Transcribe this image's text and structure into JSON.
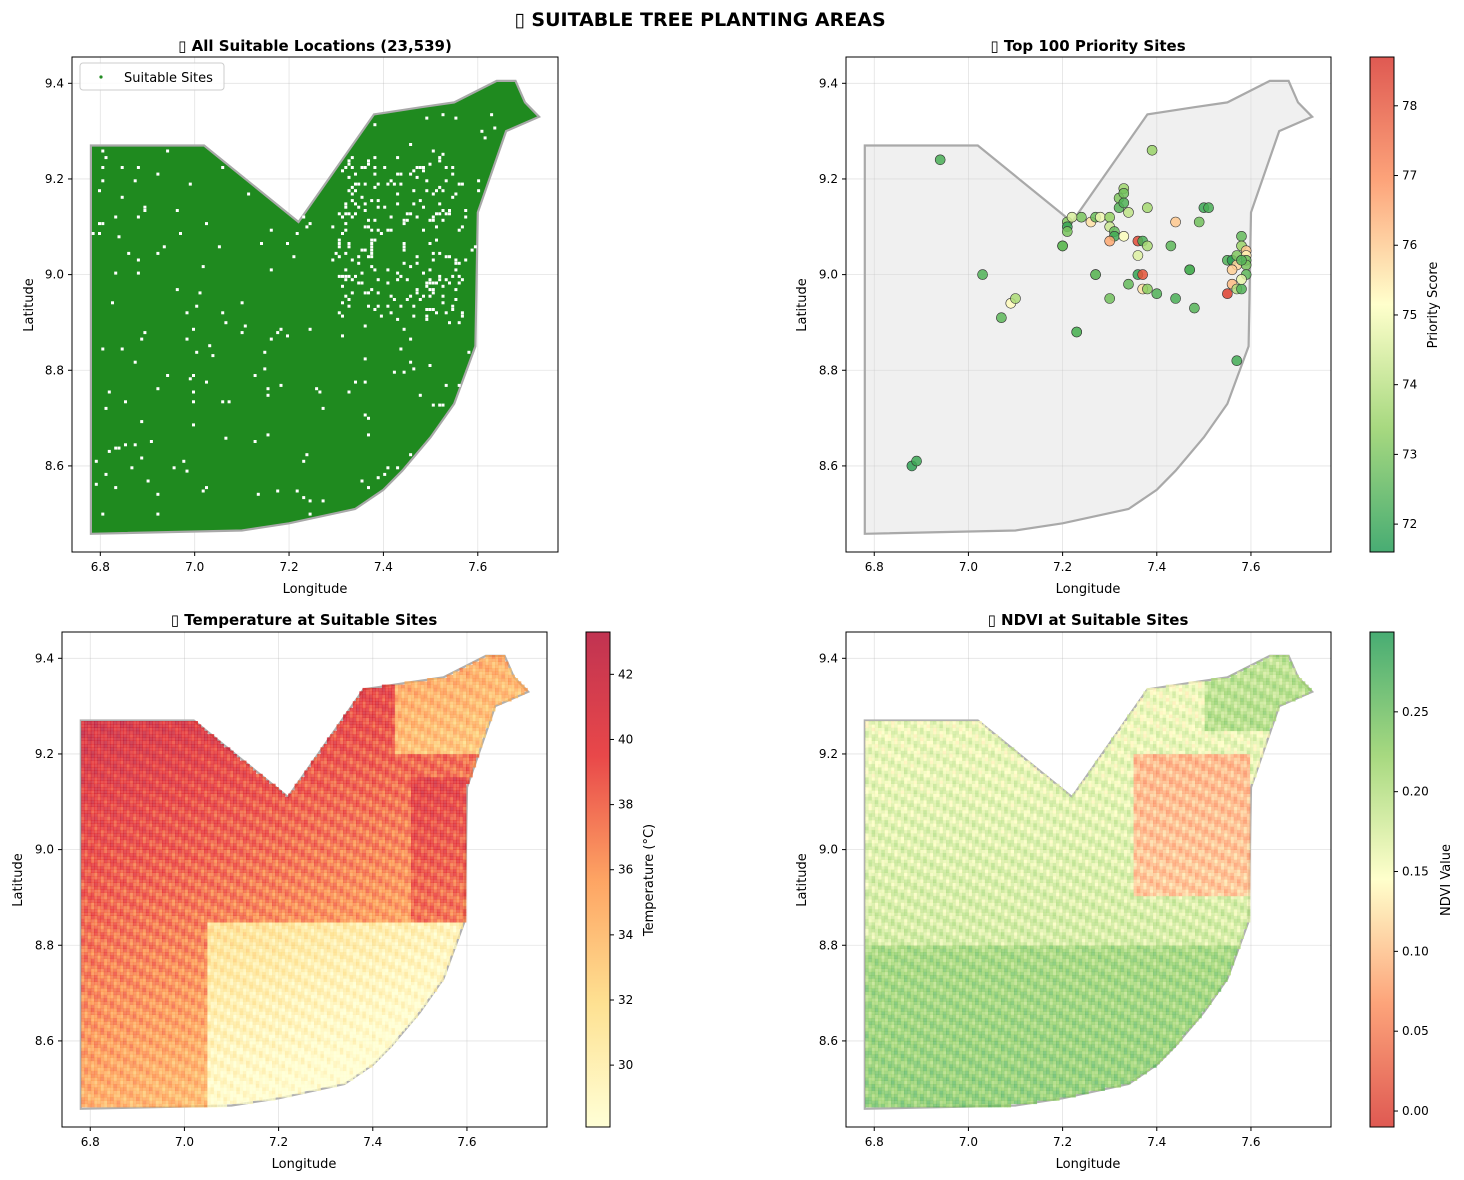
{
  "figure": {
    "title": "▯ SUITABLE TREE PLANTING AREAS"
  },
  "chart_data": [
    {
      "id": "all",
      "type": "scatter",
      "title": "▯ All Suitable Locations (23,539)",
      "xlabel": "Longitude",
      "ylabel": "Latitude",
      "xlim": [
        6.74,
        7.77
      ],
      "ylim": [
        8.42,
        9.455
      ],
      "xticks": [
        6.8,
        7.0,
        7.2,
        7.4,
        7.6
      ],
      "yticks": [
        8.6,
        8.8,
        9.0,
        9.2,
        9.4
      ],
      "grid": true,
      "legend": {
        "position": "top-left",
        "entries": [
          "Suitable Sites"
        ]
      },
      "point_color": "#228b22",
      "total_points": 23539
    },
    {
      "id": "top",
      "type": "scatter",
      "title": "▯ Top 100 Priority Sites",
      "xlabel": "Longitude",
      "ylabel": "Latitude",
      "xlim": [
        6.74,
        7.77
      ],
      "ylim": [
        8.42,
        9.455
      ],
      "xticks": [
        6.8,
        7.0,
        7.2,
        7.4,
        7.6
      ],
      "yticks": [
        8.6,
        8.8,
        9.0,
        9.2,
        9.4
      ],
      "grid": true,
      "colorbar": {
        "label": "Priority Score",
        "min": 71.6,
        "max": 78.7,
        "ticks": [
          72,
          73,
          74,
          75,
          76,
          77,
          78
        ],
        "cmap": "RdYlGn_r"
      },
      "points": [
        [
          6.94,
          9.24,
          72.3
        ],
        [
          7.39,
          9.26,
          73.5
        ],
        [
          6.88,
          8.6,
          71.9
        ],
        [
          6.89,
          8.61,
          72.1
        ],
        [
          7.03,
          9.0,
          72.4
        ],
        [
          7.07,
          8.91,
          72.6
        ],
        [
          7.09,
          8.94,
          75.2
        ],
        [
          7.1,
          8.95,
          73.8
        ],
        [
          7.21,
          9.11,
          73.2
        ],
        [
          7.21,
          9.1,
          72.0
        ],
        [
          7.24,
          9.12,
          73.0
        ],
        [
          7.26,
          9.11,
          75.6
        ],
        [
          7.27,
          9.12,
          72.8
        ],
        [
          7.28,
          9.12,
          74.9
        ],
        [
          7.3,
          9.12,
          73.4
        ],
        [
          7.3,
          9.1,
          74.3
        ],
        [
          7.31,
          9.09,
          72.7
        ],
        [
          7.31,
          9.08,
          72.2
        ],
        [
          7.32,
          9.16,
          73.1
        ],
        [
          7.32,
          9.14,
          72.5
        ],
        [
          7.33,
          9.18,
          73.6
        ],
        [
          7.33,
          9.17,
          72.9
        ],
        [
          7.34,
          9.13,
          74.1
        ],
        [
          7.33,
          9.08,
          75.1
        ],
        [
          7.2,
          9.06,
          72.1
        ],
        [
          7.21,
          9.09,
          73.0
        ],
        [
          7.27,
          9.0,
          75.5
        ],
        [
          7.27,
          9.0,
          72.4
        ],
        [
          7.3,
          8.95,
          72.9
        ],
        [
          7.23,
          8.88,
          75.0
        ],
        [
          7.23,
          8.88,
          72.2
        ],
        [
          7.34,
          8.98,
          72.7
        ],
        [
          7.36,
          9.0,
          72.0
        ],
        [
          7.37,
          9.0,
          78.0
        ],
        [
          7.36,
          9.04,
          74.6
        ],
        [
          7.36,
          9.07,
          78.2
        ],
        [
          7.37,
          9.07,
          72.3
        ],
        [
          7.38,
          9.06,
          73.8
        ],
        [
          7.37,
          8.97,
          75.6
        ],
        [
          7.38,
          8.97,
          73.3
        ],
        [
          7.4,
          8.96,
          72.4
        ],
        [
          7.38,
          9.14,
          73.7
        ],
        [
          7.43,
          9.06,
          72.6
        ],
        [
          7.44,
          9.11,
          76.0
        ],
        [
          7.44,
          8.95,
          72.3
        ],
        [
          7.47,
          9.01,
          72.0
        ],
        [
          7.47,
          9.01,
          72.4
        ],
        [
          7.48,
          8.93,
          72.5
        ],
        [
          7.49,
          9.11,
          72.9
        ],
        [
          7.5,
          9.14,
          72.1
        ],
        [
          7.51,
          9.14,
          72.3
        ],
        [
          7.55,
          9.03,
          72.4
        ],
        [
          7.55,
          8.96,
          78.4
        ],
        [
          7.56,
          9.03,
          71.9
        ],
        [
          7.56,
          8.98,
          76.2
        ],
        [
          7.57,
          9.02,
          75.8
        ],
        [
          7.57,
          8.97,
          73.9
        ],
        [
          7.57,
          8.82,
          72.2
        ],
        [
          7.58,
          9.08,
          72.7
        ],
        [
          7.58,
          9.06,
          73.5
        ],
        [
          7.58,
          8.97,
          72.4
        ],
        [
          7.59,
          9.05,
          76.0
        ],
        [
          7.59,
          9.04,
          75.4
        ],
        [
          7.59,
          9.03,
          72.8
        ],
        [
          7.59,
          9.02,
          73.0
        ],
        [
          7.59,
          9.0,
          72.6
        ],
        [
          7.58,
          8.99,
          74.8
        ],
        [
          7.56,
          9.01,
          75.9
        ],
        [
          7.57,
          9.04,
          73.1
        ],
        [
          7.58,
          9.03,
          72.5
        ],
        [
          7.2,
          9.06,
          72.8
        ],
        [
          7.33,
          9.15,
          72.4
        ],
        [
          7.22,
          9.12,
          74.5
        ],
        [
          7.3,
          9.07,
          76.5
        ]
      ]
    },
    {
      "id": "temp",
      "type": "scatter",
      "title": "▯ Temperature at Suitable Sites",
      "xlabel": "Longitude",
      "ylabel": "Latitude",
      "xlim": [
        6.74,
        7.77
      ],
      "ylim": [
        8.42,
        9.455
      ],
      "xticks": [
        6.8,
        7.0,
        7.2,
        7.4,
        7.6
      ],
      "yticks": [
        8.6,
        8.8,
        9.0,
        9.2,
        9.4
      ],
      "grid": true,
      "colorbar": {
        "label": "Temperature (°C)",
        "min": 28.1,
        "max": 43.3,
        "ticks": [
          30,
          32,
          34,
          36,
          38,
          40,
          42
        ],
        "cmap": "YlOrRd"
      }
    },
    {
      "id": "ndvi",
      "type": "scatter",
      "title": "▯ NDVI at Suitable Sites",
      "xlabel": "Longitude",
      "ylabel": "Latitude",
      "xlim": [
        6.74,
        7.77
      ],
      "ylim": [
        8.42,
        9.455
      ],
      "xticks": [
        6.8,
        7.0,
        7.2,
        7.4,
        7.6
      ],
      "yticks": [
        8.6,
        8.8,
        9.0,
        9.2,
        9.4
      ],
      "grid": true,
      "colorbar": {
        "label": "NDVI Value",
        "min": -0.01,
        "max": 0.3,
        "ticks": [
          0.0,
          0.05,
          0.1,
          0.15,
          0.2,
          0.25
        ],
        "tick_labels": [
          "0.00",
          "0.05",
          "0.10",
          "0.15",
          "0.20",
          "0.25"
        ],
        "cmap": "RdYlGn"
      }
    }
  ],
  "region_boundary": [
    [
      6.78,
      9.27
    ],
    [
      7.02,
      9.27
    ],
    [
      7.22,
      9.11
    ],
    [
      7.38,
      9.335
    ],
    [
      7.48,
      9.35
    ],
    [
      7.55,
      9.36
    ],
    [
      7.64,
      9.405
    ],
    [
      7.68,
      9.405
    ],
    [
      7.7,
      9.36
    ],
    [
      7.73,
      9.33
    ],
    [
      7.66,
      9.3
    ],
    [
      7.6,
      9.13
    ],
    [
      7.595,
      8.85
    ],
    [
      7.55,
      8.73
    ],
    [
      7.5,
      8.66
    ],
    [
      7.44,
      8.59
    ],
    [
      7.4,
      8.55
    ],
    [
      7.34,
      8.51
    ],
    [
      7.2,
      8.48
    ],
    [
      7.1,
      8.465
    ],
    [
      6.78,
      8.458
    ]
  ]
}
